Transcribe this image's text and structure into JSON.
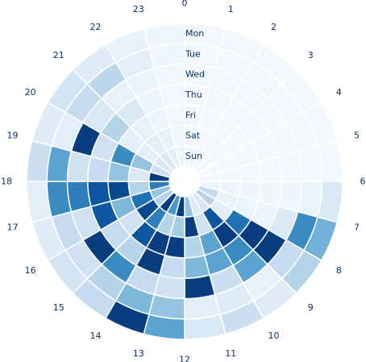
{
  "chart_data": {
    "type": "heatmap",
    "layout": "radial",
    "title": "",
    "angular_labels": [
      "0",
      "1",
      "2",
      "3",
      "4",
      "5",
      "6",
      "7",
      "8",
      "9",
      "10",
      "11",
      "12",
      "13",
      "14",
      "15",
      "16",
      "17",
      "18",
      "19",
      "20",
      "21",
      "22",
      "23"
    ],
    "radial_labels": [
      "Mon",
      "Tue",
      "Wed",
      "Thu",
      "Fri",
      "Sat",
      "Sun"
    ],
    "colormap": "Blues",
    "value_range": [
      0,
      1
    ],
    "colors": {
      "low": "#f7fbff",
      "high": "#08306b",
      "text": "#08306b"
    },
    "rows": [
      {
        "day": "Mon",
        "values": [
          0.02,
          0.03,
          0.03,
          0.02,
          0.02,
          0.02,
          0.15,
          0.48,
          0.3,
          0.12,
          0.22,
          0.15,
          0.55,
          0.95,
          0.25,
          0.18,
          0.12,
          0.1,
          0.22,
          0.12,
          0.18,
          0.12,
          0.08,
          0.04
        ]
      },
      {
        "day": "Tue",
        "values": [
          0.02,
          0.02,
          0.03,
          0.02,
          0.02,
          0.02,
          0.06,
          0.65,
          0.25,
          0.08,
          0.12,
          0.1,
          0.4,
          0.45,
          0.3,
          0.2,
          0.25,
          0.65,
          0.55,
          0.1,
          0.25,
          0.28,
          0.1,
          0.04
        ]
      },
      {
        "day": "Wed",
        "values": [
          0.02,
          0.02,
          0.03,
          0.02,
          0.02,
          0.02,
          0.04,
          0.15,
          0.95,
          0.55,
          0.22,
          0.95,
          0.2,
          0.25,
          0.65,
          0.95,
          0.2,
          0.7,
          0.2,
          0.95,
          0.15,
          0.08,
          0.06,
          0.03
        ]
      },
      {
        "day": "Thu",
        "values": [
          0.02,
          0.03,
          0.02,
          0.02,
          0.02,
          0.02,
          0.04,
          0.05,
          0.95,
          0.65,
          0.55,
          0.45,
          0.25,
          0.95,
          0.3,
          0.25,
          0.85,
          0.85,
          0.25,
          0.2,
          0.3,
          0.15,
          0.05,
          0.03
        ]
      },
      {
        "day": "Fri",
        "values": [
          0.02,
          0.02,
          0.02,
          0.02,
          0.02,
          0.02,
          0.04,
          0.05,
          0.75,
          0.95,
          0.55,
          0.3,
          0.95,
          0.95,
          0.85,
          0.2,
          0.45,
          0.9,
          0.4,
          0.65,
          0.1,
          0.08,
          0.05,
          0.03
        ]
      },
      {
        "day": "Sat",
        "values": [
          0.02,
          0.02,
          0.02,
          0.02,
          0.02,
          0.02,
          0.05,
          0.06,
          0.1,
          0.85,
          0.2,
          0.95,
          0.35,
          0.3,
          0.7,
          0.9,
          0.75,
          0.3,
          0.15,
          0.4,
          0.1,
          0.1,
          0.08,
          0.04
        ]
      },
      {
        "day": "Sun",
        "values": [
          0.03,
          0.03,
          0.02,
          0.02,
          0.02,
          0.03,
          0.05,
          0.25,
          0.3,
          0.15,
          0.12,
          0.4,
          0.95,
          0.6,
          0.95,
          0.3,
          0.4,
          0.7,
          0.95,
          0.2,
          0.15,
          0.15,
          0.1,
          0.05
        ]
      }
    ]
  }
}
